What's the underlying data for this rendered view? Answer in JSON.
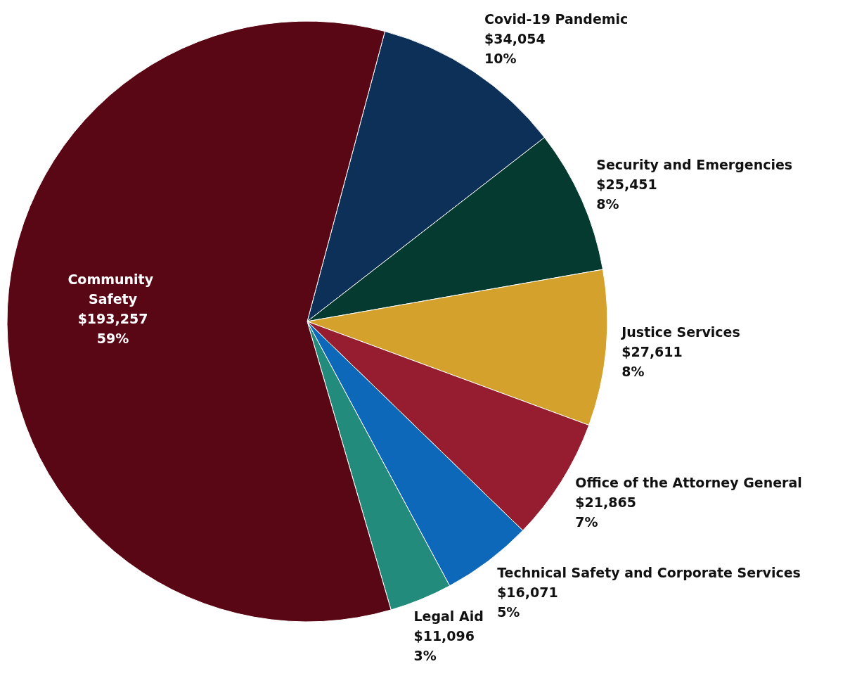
{
  "chart_data": {
    "type": "pie",
    "categories": [
      "Covid-19 Pandemic",
      "Security and Emergencies",
      "Justice Services",
      "Office of the Attorney General",
      "Technical Safety and Corporate Services",
      "Legal Aid",
      "Community Safety"
    ],
    "values": [
      34054,
      25451,
      27611,
      21865,
      16071,
      11096,
      193257
    ],
    "colors": [
      "#0c3057",
      "#053a31",
      "#d4a22c",
      "#961c30",
      "#0e68ba",
      "#228b7c",
      "#5a0715"
    ],
    "value_labels": [
      "$34,054\n10%",
      "$25,451\n8%",
      "$27,611\n8%",
      "$21,865\n7%",
      "$16,071\n5%",
      "$11,096\n3%",
      "$193,257\n59%"
    ]
  }
}
